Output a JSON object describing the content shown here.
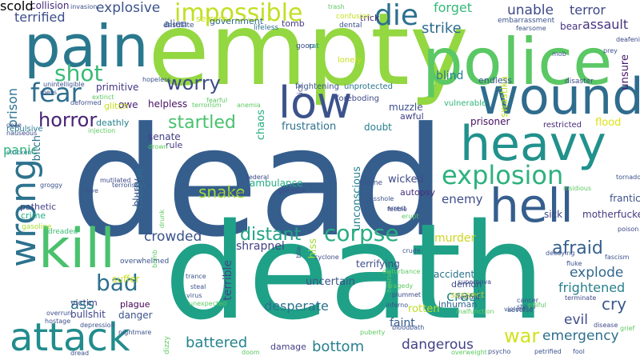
{
  "words": [
    {
      "text": "dead",
      "color": "#355e8d"
    },
    {
      "text": "death",
      "color": "#1fa187"
    },
    {
      "text": "empty",
      "color": "#93d741"
    },
    {
      "text": "police",
      "color": "#5ac864"
    },
    {
      "text": "pain",
      "color": "#2a788e"
    },
    {
      "text": "wound",
      "color": "#2f6c8e"
    },
    {
      "text": "heavy",
      "color": "#21918c"
    },
    {
      "text": "kill",
      "color": "#4ac16d"
    },
    {
      "text": "wrong",
      "color": "#2c728e"
    },
    {
      "text": "hell",
      "color": "#355e8d"
    },
    {
      "text": "low",
      "color": "#3b528b"
    },
    {
      "text": "attack",
      "color": "#228c8d"
    },
    {
      "text": "explosion",
      "color": "#2db27d"
    },
    {
      "text": "impossible",
      "color": "#c2df23"
    },
    {
      "text": "die",
      "color": "#2c718e"
    },
    {
      "text": "corpse",
      "color": "#27ad81"
    },
    {
      "text": "fear",
      "color": "#2e6e8e"
    },
    {
      "text": "worry",
      "color": "#3e4a89"
    },
    {
      "text": "shot",
      "color": "#3aba76"
    },
    {
      "text": "horror",
      "color": "#482475"
    },
    {
      "text": "afraid",
      "color": "#35608d"
    },
    {
      "text": "war",
      "color": "#d2e21b"
    },
    {
      "text": "emergency",
      "color": "#2e6f8e"
    },
    {
      "text": "battered",
      "color": "#25838e"
    },
    {
      "text": "bottom",
      "color": "#27808e"
    },
    {
      "text": "bad",
      "color": "#2d708e"
    },
    {
      "text": "startled",
      "color": "#48c16e"
    },
    {
      "text": "distant",
      "color": "#20a386"
    },
    {
      "text": "snake",
      "color": "#a5db36"
    },
    {
      "text": "explode",
      "color": "#31678e"
    },
    {
      "text": "frightened",
      "color": "#277f8e"
    },
    {
      "text": "cry",
      "color": "#38598c"
    },
    {
      "text": "evil",
      "color": "#3e4989"
    },
    {
      "text": "crash",
      "color": "#23898e"
    },
    {
      "text": "dangerous",
      "color": "#424086"
    },
    {
      "text": "desperate",
      "color": "#2c728e"
    },
    {
      "text": "crowded",
      "color": "#3b528b"
    },
    {
      "text": "ass",
      "color": "#2a778e"
    },
    {
      "text": "prison",
      "color": "#2c738e"
    },
    {
      "text": "terrified",
      "color": "#3d4e8a"
    },
    {
      "text": "explosive",
      "color": "#3b528b"
    },
    {
      "text": "unable",
      "color": "#3e4989"
    },
    {
      "text": "terror",
      "color": "#3f4788"
    },
    {
      "text": "forget",
      "color": "#35b779"
    },
    {
      "text": "strike",
      "color": "#2f6c8e"
    },
    {
      "text": "assault",
      "color": "#46327e"
    },
    {
      "text": "unsure",
      "color": "#481467"
    },
    {
      "text": "blind",
      "color": "#287c8e"
    },
    {
      "text": "swastika",
      "color": "#bddf26"
    },
    {
      "text": "endless",
      "color": "#3a548c"
    },
    {
      "text": "enemy",
      "color": "#3e4c8a"
    },
    {
      "text": "sick",
      "color": "#404588"
    },
    {
      "text": "motherfucker",
      "color": "#443a83"
    },
    {
      "text": "frantic",
      "color": "#3c4f8a"
    },
    {
      "text": "flood",
      "color": "#dde318"
    },
    {
      "text": "murder",
      "color": "#ccd51e"
    },
    {
      "text": "accident",
      "color": "#2c718e"
    },
    {
      "text": "demon",
      "color": "#3e4a89"
    },
    {
      "text": "suspect",
      "color": "#bcd127"
    },
    {
      "text": "faint",
      "color": "#365c8d"
    },
    {
      "text": "shrapnel",
      "color": "#424186"
    },
    {
      "text": "hiss",
      "color": "#9fda3a"
    },
    {
      "text": "terrible",
      "color": "#404688"
    },
    {
      "text": "terrifying",
      "color": "#3d4d8a"
    },
    {
      "text": "uncertain",
      "color": "#3b528b"
    },
    {
      "text": "rotten",
      "color": "#c0df25"
    },
    {
      "text": "inhuman",
      "color": "#31678e"
    },
    {
      "text": "bullshit",
      "color": "#404688"
    },
    {
      "text": "victim",
      "color": "#3e4a89"
    },
    {
      "text": "suffer",
      "color": "#c6df22"
    },
    {
      "text": "danger",
      "color": "#3b528b"
    },
    {
      "text": "plague",
      "color": "#440154"
    },
    {
      "text": "damage",
      "color": "#433e85"
    },
    {
      "text": "panic",
      "color": "#2fb47c"
    },
    {
      "text": "bitch",
      "color": "#2c738e"
    },
    {
      "text": "helpless",
      "color": "#471063"
    },
    {
      "text": "frustration",
      "color": "#2c718e"
    },
    {
      "text": "doubt",
      "color": "#277e8e"
    },
    {
      "text": "muzzle",
      "color": "#3c4f8a"
    },
    {
      "text": "chaos",
      "color": "#29af7f"
    },
    {
      "text": "ambulance",
      "color": "#25ac82"
    },
    {
      "text": "senate",
      "color": "#433d84"
    },
    {
      "text": "rule",
      "color": "#443983"
    },
    {
      "text": "morgue",
      "color": "#2e6e8e"
    },
    {
      "text": "unconscious",
      "color": "#26828e"
    },
    {
      "text": "wicked",
      "color": "#3e4a89"
    },
    {
      "text": "autopsy",
      "color": "#472d7b"
    },
    {
      "text": "alien",
      "color": "#3b528b"
    },
    {
      "text": "tomb",
      "color": "#443b84"
    },
    {
      "text": "primitive",
      "color": "#453581"
    },
    {
      "text": "owe",
      "color": "#482576"
    },
    {
      "text": "seizure",
      "color": "#c8e020"
    },
    {
      "text": "trick",
      "color": "#46307e"
    },
    {
      "text": "bear",
      "color": "#453581"
    },
    {
      "text": "government",
      "color": "#2f6b8e"
    },
    {
      "text": "deathly",
      "color": "#26828e"
    },
    {
      "text": "glitch",
      "color": "#c5e021"
    },
    {
      "text": "blurry",
      "color": "#3c4f8a"
    },
    {
      "text": "collision",
      "color": "#472c7a"
    },
    {
      "text": "pathetic",
      "color": "#424186"
    },
    {
      "text": "crime",
      "color": "#27ad81"
    },
    {
      "text": "gasoline",
      "color": "#a8db34"
    },
    {
      "text": "dreaded",
      "color": "#3bbb75"
    },
    {
      "text": "prisoner",
      "color": "#471164"
    },
    {
      "text": "restricted",
      "color": "#472a7a"
    },
    {
      "text": "awful",
      "color": "#424086"
    },
    {
      "text": "foreboding",
      "color": "#3e4989"
    },
    {
      "text": "vulnerable",
      "color": "#2fb47c"
    },
    {
      "text": "frightening",
      "color": "#39568c"
    },
    {
      "text": "unprotected",
      "color": "#2a768e"
    },
    {
      "text": "lonely",
      "color": "#c6e021"
    },
    {
      "text": "goop",
      "color": "#3e4a89"
    },
    {
      "text": "rat",
      "color": "#26828e"
    },
    {
      "text": "dental",
      "color": "#3b528b"
    },
    {
      "text": "lifeless",
      "color": "#2c718e"
    },
    {
      "text": "desolate",
      "color": "#3b528b"
    },
    {
      "text": "embarrassment",
      "color": "#3b528b"
    },
    {
      "text": "confusion",
      "color": "#c5e021"
    },
    {
      "text": "deafening",
      "color": "#3e4989"
    },
    {
      "text": "mob",
      "color": "#3b528b"
    },
    {
      "text": "prey",
      "color": "#3b528b"
    },
    {
      "text": "disaster",
      "color": "#3e4989"
    },
    {
      "text": "nauseous",
      "color": "#3e4989"
    },
    {
      "text": "repulsive",
      "color": "#2a788e"
    },
    {
      "text": "stricken",
      "color": "#26828e"
    },
    {
      "text": "unintelligible",
      "color": "#3b528b"
    },
    {
      "text": "mess",
      "color": "#3b528b"
    },
    {
      "text": "extinct",
      "color": "#5ec962"
    },
    {
      "text": "terrorism",
      "color": "#5ec962"
    },
    {
      "text": "anemia",
      "color": "#5ec962"
    },
    {
      "text": "ooze",
      "color": "#3b528b"
    },
    {
      "text": "invasion",
      "color": "#3b528b"
    },
    {
      "text": "deformed",
      "color": "#3b528b"
    },
    {
      "text": "fearful",
      "color": "#5ec962"
    },
    {
      "text": "injection",
      "color": "#5ec962"
    },
    {
      "text": "drown",
      "color": "#5ec962"
    },
    {
      "text": "terrorist",
      "color": "#3b528b"
    },
    {
      "text": "mutilated",
      "color": "#3e4989"
    },
    {
      "text": "groggy",
      "color": "#3b528b"
    },
    {
      "text": "slave",
      "color": "#3b528b"
    },
    {
      "text": "murderer",
      "color": "#3e4989"
    },
    {
      "text": "federal",
      "color": "#3e4989"
    },
    {
      "text": "gimmick",
      "color": "#3e4989"
    },
    {
      "text": "arrest",
      "color": "#3b528b"
    },
    {
      "text": "erupt",
      "color": "#5ec962"
    },
    {
      "text": "tornado",
      "color": "#3b528b"
    },
    {
      "text": "insidious",
      "color": "#5ec962"
    },
    {
      "text": "poison",
      "color": "#3e4989"
    },
    {
      "text": "decaying",
      "color": "#3b528b"
    },
    {
      "text": "fascism",
      "color": "#3b528b"
    },
    {
      "text": "fluke",
      "color": "#3b528b"
    },
    {
      "text": "overwhelmed",
      "color": "#3b528b"
    },
    {
      "text": "drunk",
      "color": "#5ec962"
    },
    {
      "text": "bomb",
      "color": "#5ec962"
    },
    {
      "text": "trance",
      "color": "#3b528b"
    },
    {
      "text": "steal",
      "color": "#3b528b"
    },
    {
      "text": "virus",
      "color": "#3b528b"
    },
    {
      "text": "unexpected",
      "color": "#5ec962"
    },
    {
      "text": "crude",
      "color": "#3b528b"
    },
    {
      "text": "bile",
      "color": "#3b528b"
    },
    {
      "text": "cyclone",
      "color": "#3e4989"
    },
    {
      "text": "disturbance",
      "color": "#5ec962"
    },
    {
      "text": "tragedy",
      "color": "#5ec962"
    },
    {
      "text": "supernova",
      "color": "#3e4989"
    },
    {
      "text": "torture",
      "color": "#3b528b"
    },
    {
      "text": "cancer",
      "color": "#3b528b"
    },
    {
      "text": "shiver",
      "color": "#3b528b"
    },
    {
      "text": "adverse",
      "color": "#3b528b"
    },
    {
      "text": "terminate",
      "color": "#3e4989"
    },
    {
      "text": "pitiful",
      "color": "#5ec962"
    },
    {
      "text": "violent",
      "color": "#3b528b"
    },
    {
      "text": "plummet",
      "color": "#3e4989"
    },
    {
      "text": "inferno",
      "color": "#3b528b"
    },
    {
      "text": "malfunction",
      "color": "#5ec962"
    },
    {
      "text": "hostage",
      "color": "#3b528b"
    },
    {
      "text": "overrun",
      "color": "#3b528b"
    },
    {
      "text": "depression",
      "color": "#3b528b"
    },
    {
      "text": "nightmare",
      "color": "#3b528b"
    },
    {
      "text": "dread",
      "color": "#3b528b"
    },
    {
      "text": "dizzy",
      "color": "#5ec962"
    },
    {
      "text": "doom",
      "color": "#5ec962"
    },
    {
      "text": "puberty",
      "color": "#5ec962"
    },
    {
      "text": "bloodbath",
      "color": "#3b528b"
    },
    {
      "text": "psycho",
      "color": "#3b528b"
    },
    {
      "text": "overweight",
      "color": "#5ec962"
    },
    {
      "text": "petrified",
      "color": "#3b528b"
    },
    {
      "text": "fool",
      "color": "#3b528b"
    },
    {
      "text": "disease",
      "color": "#3e4989"
    },
    {
      "text": "grief",
      "color": "#5ec962"
    },
    {
      "text": "blame",
      "color": "#3b528b"
    },
    {
      "text": "asshole",
      "color": "#3b528b"
    },
    {
      "text": "feeble",
      "color": "#3e4989"
    },
    {
      "text": "hearse",
      "color": "#5ec962"
    },
    {
      "text": "tick",
      "color": "#3e4989"
    },
    {
      "text": "fearsome",
      "color": "#3b528b"
    },
    {
      "text": "hopeless",
      "color": "#3b528b"
    },
    {
      "text": "trash",
      "color": "#5ec962"
    },
    {
      "text": "scold",
      "color": "#5ec962"
    }
  ]
}
